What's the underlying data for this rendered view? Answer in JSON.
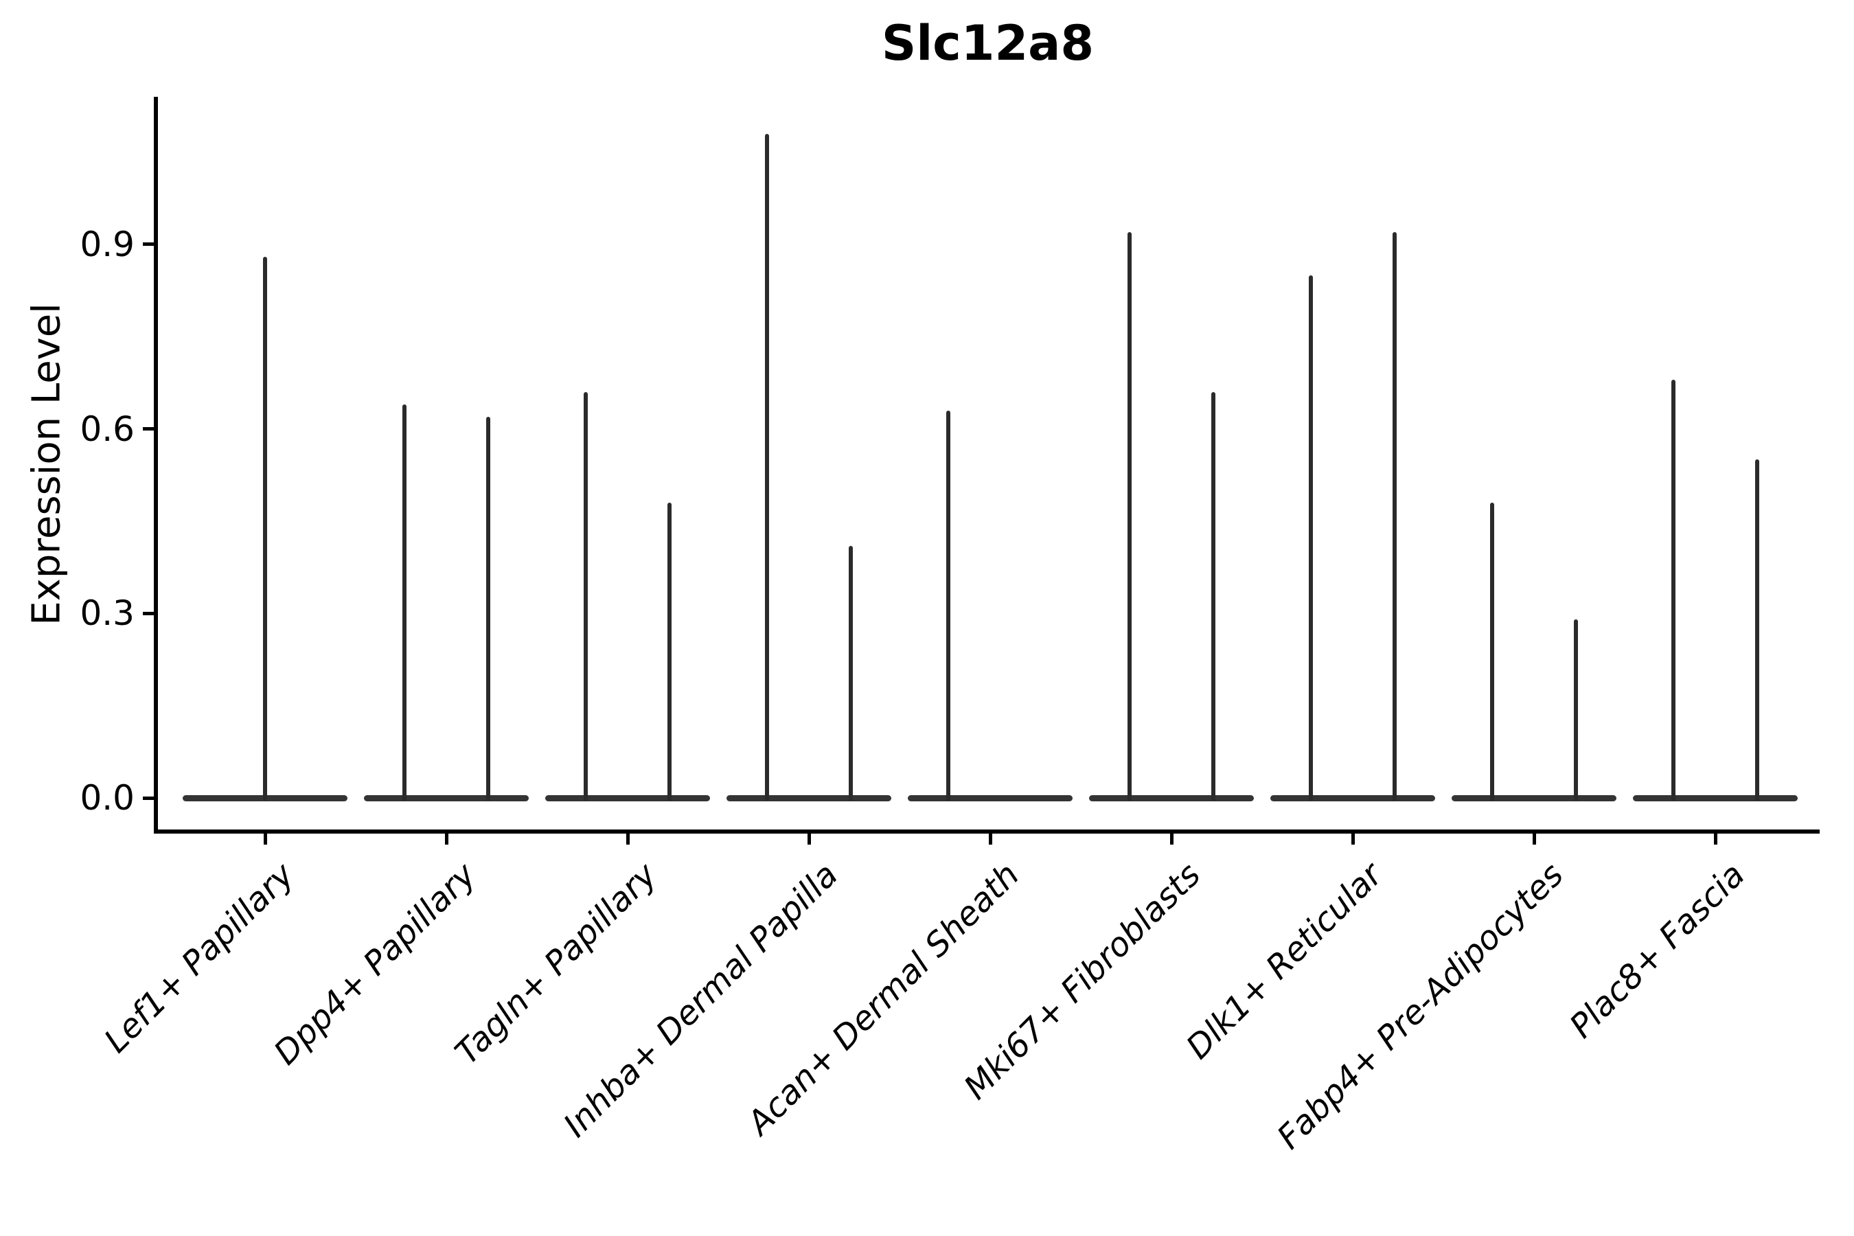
{
  "chart_data": {
    "type": "violin",
    "title": "Slc12a8",
    "xlabel": "",
    "ylabel": "Expression Level",
    "ytick_labels": [
      "0.0",
      "0.3",
      "0.6",
      "0.9"
    ],
    "yticks": [
      0.0,
      0.3,
      0.6,
      0.9
    ],
    "ylim": [
      -0.05,
      1.14
    ],
    "grid": false,
    "legend": "none",
    "style_note": "needle-thin black violins: wide flat base at 0 with thin spike up to max expression; two violins per category (left/right) except single centered violin for Lef1+ Papillary",
    "categories": [
      "Lef1+ Papillary",
      "Dpp4+ Papillary",
      "Tagln+ Papillary",
      "Inhba+ Dermal Papilla",
      "Acan+ Dermal Sheath",
      "Mki67+ Fibroblasts",
      "Dlk1+ Reticular",
      "Fabp4+ Pre-Adipocytes",
      "Plac8+ Fascia"
    ],
    "series": [
      {
        "category": "Lef1+ Papillary",
        "violins": [
          {
            "position": "center",
            "max": 0.88
          }
        ]
      },
      {
        "category": "Dpp4+ Papillary",
        "violins": [
          {
            "position": "left",
            "max": 0.64
          },
          {
            "position": "right",
            "max": 0.62
          }
        ]
      },
      {
        "category": "Tagln+ Papillary",
        "violins": [
          {
            "position": "left",
            "max": 0.66
          },
          {
            "position": "right",
            "max": 0.48
          }
        ]
      },
      {
        "category": "Inhba+ Dermal Papilla",
        "violins": [
          {
            "position": "left",
            "max": 1.08
          },
          {
            "position": "right",
            "max": 0.41
          }
        ]
      },
      {
        "category": "Acan+ Dermal Sheath",
        "violins": [
          {
            "position": "left",
            "max": 0.63
          },
          {
            "position": "right",
            "max": 0.0
          }
        ]
      },
      {
        "category": "Mki67+ Fibroblasts",
        "violins": [
          {
            "position": "left",
            "max": 0.92
          },
          {
            "position": "right",
            "max": 0.66
          }
        ]
      },
      {
        "category": "Dlk1+ Reticular",
        "violins": [
          {
            "position": "left",
            "max": 0.85
          },
          {
            "position": "right",
            "max": 0.92
          }
        ]
      },
      {
        "category": "Fabp4+ Pre-Adipocytes",
        "violins": [
          {
            "position": "left",
            "max": 0.48
          },
          {
            "position": "right",
            "max": 0.29
          }
        ]
      },
      {
        "category": "Plac8+ Fascia",
        "violins": [
          {
            "position": "left",
            "max": 0.68
          },
          {
            "position": "right",
            "max": 0.55
          }
        ]
      }
    ]
  }
}
